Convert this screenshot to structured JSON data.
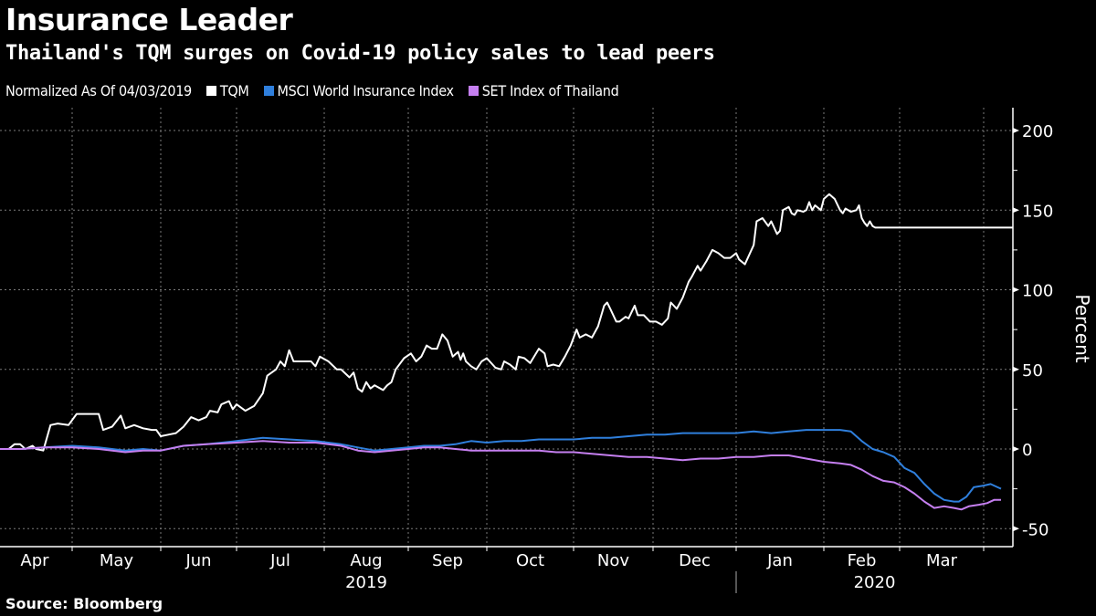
{
  "header": {
    "title": "Insurance Leader",
    "subtitle": "Thailand's TQM surges on Covid-19 policy sales to lead peers"
  },
  "legend": {
    "note": "Normalized As Of 04/03/2019",
    "items": [
      {
        "label": "TQM",
        "color": "#ffffff"
      },
      {
        "label": "MSCI World Insurance Index",
        "color": "#2f7fdc"
      },
      {
        "label": "SET Index of Thailand",
        "color": "#c57ff0"
      }
    ]
  },
  "footer": {
    "source": "Source: Bloomberg"
  },
  "chart_data": {
    "type": "line",
    "title": "Insurance Leader",
    "subtitle": "Thailand's TQM surges on Covid-19 policy sales to lead peers",
    "xlabel": "",
    "ylabel": "Percent",
    "ylim": [
      -57,
      215
    ],
    "yticks": [
      200,
      150,
      100,
      50,
      0,
      -50
    ],
    "y_axis_side": "right",
    "grid": true,
    "legend_position": "top-left",
    "x_unit": "months since 2019-04-03 (month boundaries at integers: 1=May, 2=Jun ... 12=Apr 2020)",
    "month_labels": [
      "Apr",
      "May",
      "Jun",
      "Jul",
      "Aug",
      "Sep",
      "Oct",
      "Nov",
      "Dec",
      "Jan",
      "Feb",
      "Mar"
    ],
    "year_labels": [
      {
        "label": "2019",
        "under": "Aug"
      },
      {
        "label": "2020",
        "under": "Feb"
      }
    ],
    "series": [
      {
        "name": "TQM",
        "color": "#ffffff",
        "points": [
          [
            0,
            0
          ],
          [
            0.12,
            0
          ],
          [
            0.2,
            3
          ],
          [
            0.28,
            3
          ],
          [
            0.35,
            0
          ],
          [
            0.45,
            2
          ],
          [
            0.5,
            0
          ],
          [
            0.6,
            -1
          ],
          [
            0.7,
            15
          ],
          [
            0.8,
            16
          ],
          [
            0.95,
            15
          ],
          [
            1.05,
            22
          ],
          [
            1.15,
            22
          ],
          [
            1.3,
            22
          ],
          [
            1.35,
            12
          ],
          [
            1.45,
            14
          ],
          [
            1.55,
            21
          ],
          [
            1.6,
            13
          ],
          [
            1.7,
            15
          ],
          [
            1.8,
            13
          ],
          [
            1.9,
            12
          ],
          [
            1.95,
            12
          ],
          [
            2.0,
            8
          ],
          [
            2.1,
            9
          ],
          [
            2.2,
            10
          ],
          [
            2.3,
            14
          ],
          [
            2.4,
            20
          ],
          [
            2.5,
            18
          ],
          [
            2.6,
            20
          ],
          [
            2.65,
            24
          ],
          [
            2.75,
            23
          ],
          [
            2.8,
            28
          ],
          [
            2.9,
            30
          ],
          [
            2.95,
            25
          ],
          [
            3.0,
            28
          ],
          [
            3.1,
            24
          ],
          [
            3.2,
            27
          ],
          [
            3.3,
            35
          ],
          [
            3.35,
            46
          ],
          [
            3.45,
            50
          ],
          [
            3.5,
            55
          ],
          [
            3.55,
            52
          ],
          [
            3.6,
            62
          ],
          [
            3.65,
            55
          ],
          [
            3.75,
            55
          ],
          [
            3.85,
            55
          ],
          [
            3.9,
            52
          ],
          [
            3.95,
            58
          ],
          [
            4.05,
            55
          ],
          [
            4.15,
            50
          ],
          [
            4.2,
            50
          ],
          [
            4.3,
            45
          ],
          [
            4.35,
            48
          ],
          [
            4.4,
            38
          ],
          [
            4.45,
            36
          ],
          [
            4.5,
            42
          ],
          [
            4.55,
            38
          ],
          [
            4.6,
            40
          ],
          [
            4.7,
            37
          ],
          [
            4.75,
            40
          ],
          [
            4.8,
            42
          ],
          [
            4.85,
            50
          ],
          [
            4.95,
            57
          ],
          [
            5.05,
            60
          ],
          [
            5.15,
            55
          ],
          [
            5.25,
            58
          ],
          [
            5.35,
            65
          ],
          [
            5.45,
            63
          ],
          [
            5.55,
            63
          ],
          [
            5.65,
            72
          ],
          [
            5.75,
            68
          ],
          [
            5.85,
            58
          ],
          [
            5.95,
            61
          ],
          [
            6.0,
            56
          ],
          [
            6.05,
            60
          ],
          [
            6.1,
            55
          ],
          [
            6.2,
            52
          ],
          [
            6.3,
            50
          ],
          [
            6.4,
            55
          ],
          [
            6.5,
            57
          ],
          [
            6.55,
            55
          ],
          [
            6.65,
            51
          ],
          [
            6.75,
            50
          ],
          [
            6.8,
            55
          ],
          [
            6.9,
            53
          ],
          [
            7.0,
            50
          ],
          [
            7.05,
            58
          ],
          [
            7.15,
            57
          ],
          [
            7.25,
            54
          ],
          [
            7.3,
            57
          ],
          [
            7.4,
            63
          ],
          [
            7.5,
            60
          ],
          [
            7.55,
            52
          ],
          [
            7.65,
            53
          ],
          [
            7.75,
            52
          ],
          [
            7.85,
            58
          ],
          [
            7.95,
            65
          ],
          [
            8.05,
            75
          ],
          [
            8.1,
            70
          ],
          [
            8.2,
            72
          ],
          [
            8.3,
            70
          ],
          [
            8.4,
            77
          ],
          [
            8.5,
            90
          ],
          [
            8.55,
            92
          ],
          [
            8.6,
            88
          ],
          [
            8.7,
            80
          ],
          [
            8.75,
            80
          ],
          [
            8.85,
            83
          ],
          [
            8.9,
            82
          ],
          [
            9.0,
            90
          ],
          [
            9.05,
            84
          ],
          [
            9.15,
            84
          ],
          [
            9.25,
            80
          ],
          [
            9.35,
            80
          ],
          [
            9.45,
            78
          ],
          [
            9.55,
            82
          ],
          [
            9.6,
            92
          ],
          [
            9.7,
            88
          ],
          [
            9.8,
            95
          ],
          [
            9.9,
            105
          ],
          [
            9.95,
            108
          ],
          [
            10.05,
            115
          ],
          [
            10.1,
            112
          ],
          [
            10.2,
            118
          ],
          [
            10.3,
            125
          ],
          [
            10.4,
            123
          ],
          [
            10.5,
            120
          ],
          [
            10.6,
            120
          ],
          [
            10.7,
            123
          ],
          [
            10.75,
            119
          ],
          [
            10.85,
            116
          ],
          [
            10.9,
            120
          ],
          [
            10.95,
            124
          ],
          [
            11.0,
            128
          ],
          [
            11.05,
            143
          ],
          [
            11.15,
            145
          ],
          [
            11.25,
            140
          ],
          [
            11.3,
            143
          ],
          [
            11.4,
            135
          ],
          [
            11.45,
            137
          ],
          [
            11.5,
            150
          ],
          [
            11.6,
            152
          ],
          [
            11.65,
            148
          ],
          [
            11.7,
            147
          ],
          [
            11.75,
            150
          ],
          [
            11.85,
            149
          ],
          [
            11.9,
            150
          ],
          [
            11.95,
            155
          ],
          [
            12.0,
            150
          ],
          [
            12.05,
            153
          ],
          [
            12.15,
            150
          ],
          [
            12.2,
            157
          ],
          [
            12.3,
            160
          ],
          [
            12.4,
            157
          ],
          [
            12.5,
            150
          ],
          [
            12.55,
            148
          ],
          [
            12.6,
            151
          ],
          [
            12.7,
            149
          ],
          [
            12.8,
            150
          ],
          [
            12.85,
            153
          ],
          [
            12.9,
            145
          ],
          [
            12.95,
            142
          ],
          [
            13.0,
            140
          ],
          [
            13.05,
            143
          ],
          [
            13.1,
            140
          ],
          [
            13.15,
            139
          ]
        ]
      },
      {
        "name": "MSCI World Insurance Index",
        "color": "#2f7fdc",
        "points": [
          [
            0,
            0
          ],
          [
            0.3,
            0
          ],
          [
            0.6,
            1
          ],
          [
            1.0,
            2
          ],
          [
            1.3,
            1
          ],
          [
            1.6,
            -1
          ],
          [
            1.8,
            0
          ],
          [
            2.0,
            -1
          ],
          [
            2.3,
            2
          ],
          [
            2.6,
            3
          ],
          [
            3.0,
            5
          ],
          [
            3.3,
            7
          ],
          [
            3.6,
            6
          ],
          [
            3.9,
            5
          ],
          [
            4.2,
            3
          ],
          [
            4.4,
            1
          ],
          [
            4.6,
            -1
          ],
          [
            4.8,
            0
          ],
          [
            5.0,
            1
          ],
          [
            5.3,
            2
          ],
          [
            5.6,
            2
          ],
          [
            5.9,
            3
          ],
          [
            6.2,
            5
          ],
          [
            6.5,
            4
          ],
          [
            6.8,
            5
          ],
          [
            7.1,
            5
          ],
          [
            7.4,
            6
          ],
          [
            7.7,
            6
          ],
          [
            8.0,
            6
          ],
          [
            8.3,
            7
          ],
          [
            8.6,
            7
          ],
          [
            8.9,
            8
          ],
          [
            9.2,
            9
          ],
          [
            9.5,
            9
          ],
          [
            9.8,
            10
          ],
          [
            10.1,
            10
          ],
          [
            10.4,
            10
          ],
          [
            10.7,
            10
          ],
          [
            11.0,
            11
          ],
          [
            11.3,
            10
          ],
          [
            11.6,
            11
          ],
          [
            11.9,
            12
          ],
          [
            12.2,
            12
          ],
          [
            12.5,
            12
          ],
          [
            12.7,
            11
          ],
          [
            12.9,
            5
          ],
          [
            13.1,
            0
          ],
          [
            13.3,
            -2
          ],
          [
            13.5,
            -5
          ],
          [
            13.7,
            -12
          ],
          [
            13.9,
            -15
          ],
          [
            14.1,
            -22
          ],
          [
            14.3,
            -28
          ],
          [
            14.5,
            -32
          ],
          [
            14.7,
            -33
          ],
          [
            14.8,
            -33
          ],
          [
            14.95,
            -30
          ],
          [
            15.1,
            -24
          ],
          [
            15.3,
            -23
          ],
          [
            15.5,
            -22
          ],
          [
            15.7,
            -24
          ],
          [
            15.8,
            -25
          ]
        ]
      },
      {
        "name": "SET Index of Thailand",
        "color": "#c57ff0",
        "points": [
          [
            0,
            0
          ],
          [
            0.3,
            0
          ],
          [
            0.6,
            1
          ],
          [
            1.0,
            1
          ],
          [
            1.3,
            0
          ],
          [
            1.6,
            -2
          ],
          [
            1.8,
            -1
          ],
          [
            2.0,
            -1
          ],
          [
            2.3,
            2
          ],
          [
            2.6,
            3
          ],
          [
            3.0,
            4
          ],
          [
            3.3,
            5
          ],
          [
            3.6,
            4
          ],
          [
            3.9,
            4
          ],
          [
            4.2,
            2
          ],
          [
            4.4,
            -1
          ],
          [
            4.6,
            -2
          ],
          [
            4.8,
            -1
          ],
          [
            5.0,
            0
          ],
          [
            5.3,
            1
          ],
          [
            5.6,
            1
          ],
          [
            5.9,
            0
          ],
          [
            6.2,
            -1
          ],
          [
            6.5,
            -1
          ],
          [
            6.8,
            -1
          ],
          [
            7.1,
            -1
          ],
          [
            7.4,
            -1
          ],
          [
            7.7,
            -2
          ],
          [
            8.0,
            -2
          ],
          [
            8.3,
            -3
          ],
          [
            8.6,
            -4
          ],
          [
            8.9,
            -5
          ],
          [
            9.2,
            -5
          ],
          [
            9.5,
            -6
          ],
          [
            9.8,
            -7
          ],
          [
            10.1,
            -6
          ],
          [
            10.4,
            -6
          ],
          [
            10.7,
            -5
          ],
          [
            11.0,
            -5
          ],
          [
            11.3,
            -4
          ],
          [
            11.6,
            -4
          ],
          [
            11.9,
            -6
          ],
          [
            12.2,
            -8
          ],
          [
            12.5,
            -9
          ],
          [
            12.7,
            -10
          ],
          [
            12.9,
            -13
          ],
          [
            13.1,
            -17
          ],
          [
            13.3,
            -20
          ],
          [
            13.5,
            -21
          ],
          [
            13.7,
            -24
          ],
          [
            13.9,
            -28
          ],
          [
            14.1,
            -33
          ],
          [
            14.3,
            -37
          ],
          [
            14.5,
            -36
          ],
          [
            14.7,
            -37
          ],
          [
            14.85,
            -38
          ],
          [
            15.0,
            -36
          ],
          [
            15.2,
            -35
          ],
          [
            15.4,
            -34
          ],
          [
            15.6,
            -32
          ],
          [
            15.8,
            -32
          ]
        ]
      }
    ]
  }
}
